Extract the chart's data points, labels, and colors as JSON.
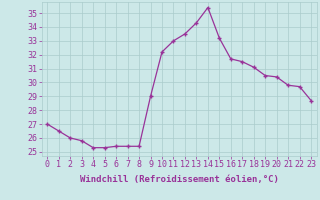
{
  "x": [
    0,
    1,
    2,
    3,
    4,
    5,
    6,
    7,
    8,
    9,
    10,
    11,
    12,
    13,
    14,
    15,
    16,
    17,
    18,
    19,
    20,
    21,
    22,
    23
  ],
  "y": [
    27.0,
    26.5,
    26.0,
    25.8,
    25.3,
    25.3,
    25.4,
    25.4,
    25.4,
    29.0,
    32.2,
    33.0,
    33.5,
    34.3,
    35.4,
    33.2,
    31.7,
    31.5,
    31.1,
    30.5,
    30.4,
    29.8,
    29.7,
    28.7
  ],
  "yticks": [
    25,
    26,
    27,
    28,
    29,
    30,
    31,
    32,
    33,
    34,
    35
  ],
  "xlabel": "Windchill (Refroidissement éolien,°C)",
  "line_color": "#993399",
  "marker": "+",
  "bg_color": "#cce8e8",
  "grid_color": "#aacccc",
  "font_color": "#993399",
  "label_fontsize": 6.5,
  "tick_fontsize": 6.0,
  "ylim_min": 24.7,
  "ylim_max": 35.8,
  "xlim_min": -0.5,
  "xlim_max": 23.5
}
